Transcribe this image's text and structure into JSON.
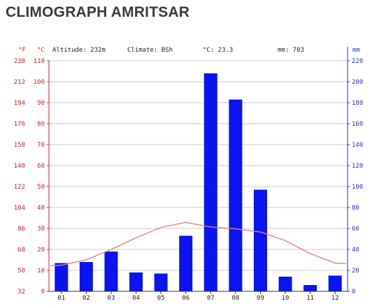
{
  "title": "CLIMOGRAPH AMRITSAR",
  "info": {
    "altitude": "Altitude: 232m",
    "climate": "Climate: BSh",
    "temp_avg": "°C: 23.3",
    "precip_total": "mm: 703"
  },
  "colors": {
    "precip_bar": "#0a14f0",
    "temp_line": "#e8807a",
    "left_axis": "#d42020",
    "right_axis": "#2233cc",
    "grid": "#cccccc",
    "text": "#222222",
    "title": "#3b3b3b"
  },
  "chart_data": {
    "type": "bar",
    "categories": [
      "01",
      "02",
      "03",
      "04",
      "05",
      "06",
      "07",
      "08",
      "09",
      "10",
      "11",
      "12"
    ],
    "series": [
      {
        "kind": "bar",
        "axis": "right",
        "values": [
          27,
          28,
          38,
          18,
          17,
          53,
          208,
          183,
          97,
          14,
          6,
          15
        ]
      },
      {
        "kind": "line",
        "axis": "left",
        "values": [
          12.5,
          15.0,
          20.0,
          25.5,
          30.5,
          32.9,
          30.7,
          29.8,
          28.3,
          24.2,
          18.0,
          13.5
        ]
      }
    ],
    "left_axis_f": {
      "label": "°F",
      "ticks": [
        "230",
        "212",
        "194",
        "176",
        "158",
        "140",
        "122",
        "104",
        "86",
        "68",
        "50",
        "32"
      ]
    },
    "left_axis_c": {
      "label": "°C",
      "ticks": [
        "110",
        "100",
        "90",
        "80",
        "70",
        "60",
        "50",
        "40",
        "30",
        "20",
        "10",
        "0"
      ],
      "ylim": [
        0,
        110
      ]
    },
    "right_axis": {
      "label": "mm",
      "ticks": [
        "220",
        "200",
        "180",
        "160",
        "140",
        "120",
        "100",
        "80",
        "60",
        "40",
        "20",
        "0"
      ],
      "ylim": [
        0,
        220
      ]
    },
    "grid": true
  }
}
